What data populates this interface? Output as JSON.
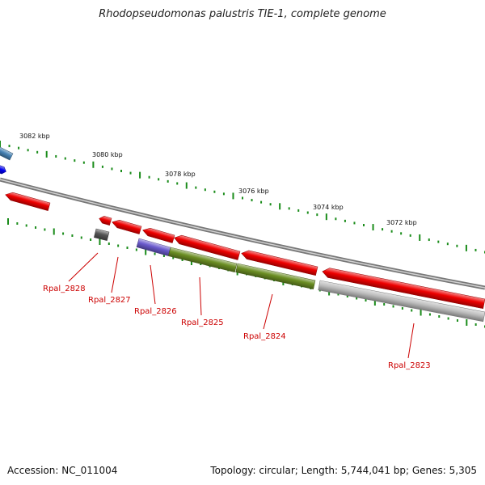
{
  "title": "Rhodopseudomonas palustris TIE-1, complete genome",
  "accession": "Accession: NC_011004",
  "genome_info": "Topology: circular; Length: 5,744,041 bp; Genes: 5,305",
  "colors": {
    "backbone": "#7a7a7a",
    "tick": "#1a8c1a",
    "gene_red": "#ee0000",
    "gene_olive": "#6b8e23",
    "gene_gray": "#bdbdbd",
    "gene_dark": "#555555",
    "gene_purple": "#6a5acd",
    "gene_blue": "#0000ee",
    "gene_steelblue": "#4682b4",
    "label_red": "#cc0000"
  },
  "scale_labels": [
    "3082 kbp",
    "3080 kbp",
    "3078 kbp",
    "3076 kbp",
    "3074 kbp",
    "3072 kbp"
  ],
  "gene_labels": [
    "Rpal_2828",
    "Rpal_2827",
    "Rpal_2826",
    "Rpal_2825",
    "Rpal_2824",
    "Rpal_2823"
  ]
}
